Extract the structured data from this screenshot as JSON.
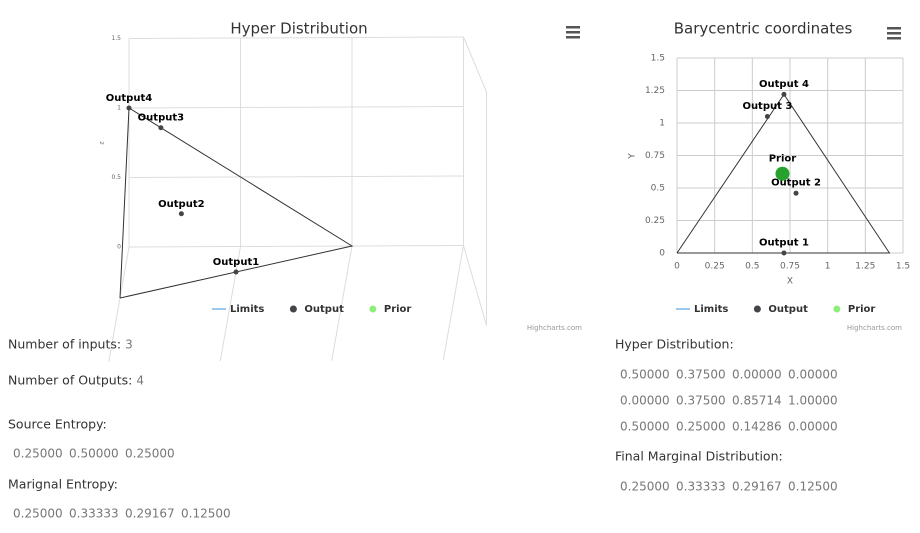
{
  "chart_data": [
    {
      "type": "scatter3d",
      "title": "Hyper Distribution",
      "y_label": "z",
      "xlim": [
        0,
        1.5
      ],
      "ylim": [
        0,
        1.5
      ],
      "zlim": [
        0,
        1.5
      ],
      "yticks": [
        0,
        0.5,
        1,
        1.5
      ],
      "series": [
        {
          "name": "Limits",
          "kind": "line",
          "color": "#7cb5ec",
          "line_color": "#333333",
          "x": [
            1,
            0,
            0,
            1
          ],
          "y": [
            0,
            1,
            0,
            0
          ],
          "z": [
            0,
            0,
            1,
            0
          ]
        },
        {
          "name": "Output",
          "kind": "scatter",
          "color": "#434348",
          "x": [
            0.5,
            0.375,
            0,
            0
          ],
          "y": [
            0,
            0.375,
            0.857,
            1
          ],
          "z": [
            0.5,
            0.25,
            0.143,
            0
          ],
          "labels": [
            "Output1",
            "Output2",
            "Output3",
            "Output4"
          ]
        },
        {
          "name": "Prior",
          "kind": "scatter",
          "color": "#90ed7d",
          "x": [],
          "y": [],
          "z": []
        }
      ],
      "credits": "Highcharts.com"
    },
    {
      "type": "scatter",
      "title": "Barycentric coordinates",
      "x_label": "X",
      "y_label": "Y",
      "xlim": [
        0,
        1.5
      ],
      "xticks": [
        0,
        0.25,
        0.5,
        0.75,
        1,
        1.25,
        1.5
      ],
      "ylim": [
        0,
        1.5
      ],
      "yticks": [
        0,
        0.25,
        0.5,
        0.75,
        1,
        1.25,
        1.5
      ],
      "grid": true,
      "series": [
        {
          "name": "Limits",
          "kind": "line",
          "color": "#7cb5ec",
          "line_color": "#333333",
          "x": [
            0,
            0.71,
            1.41,
            0
          ],
          "y": [
            0,
            1.22,
            0,
            0
          ]
        },
        {
          "name": "Output",
          "kind": "scatter",
          "color": "#434348",
          "x": [
            0.71,
            0.79,
            0.6,
            0.71
          ],
          "y": [
            0,
            0.46,
            1.05,
            1.22
          ],
          "labels": [
            "Output 1",
            "Output 2",
            "Output 3",
            "Output 4"
          ]
        },
        {
          "name": "Prior",
          "kind": "scatter",
          "color": "#90ed7d",
          "point_color": "#27a22f",
          "x": [
            0.7
          ],
          "y": [
            0.61
          ],
          "labels": [
            "Prior"
          ]
        }
      ],
      "credits": "Highcharts.com"
    }
  ],
  "left_info": {
    "inputs_label": "Number of inputs:",
    "inputs": "3",
    "outputs_label": "Number of Outputs:",
    "outputs": "4",
    "source_label": "Source Entropy:",
    "source": [
      "0.25000",
      "0.50000",
      "0.25000"
    ],
    "marginal_label": "Marignal Entropy:",
    "marginal": [
      "0.25000",
      "0.33333",
      "0.29167",
      "0.12500"
    ]
  },
  "right_info": {
    "hyper_label": "Hyper Distribution:",
    "hyper": [
      [
        "0.50000",
        "0.37500",
        "0.00000",
        "0.00000"
      ],
      [
        "0.00000",
        "0.37500",
        "0.85714",
        "1.00000"
      ],
      [
        "0.50000",
        "0.25000",
        "0.14286",
        "0.00000"
      ]
    ],
    "final_label": "Final Marginal Distribution:",
    "final": [
      "0.25000",
      "0.33333",
      "0.29167",
      "0.12500"
    ]
  }
}
